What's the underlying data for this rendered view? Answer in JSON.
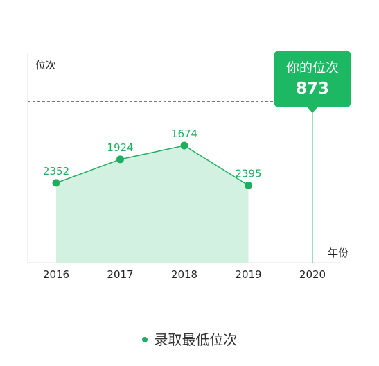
{
  "chart_data": {
    "type": "area",
    "xlabel": "年份",
    "ylabel": "位次",
    "categories": [
      "2016",
      "2017",
      "2018",
      "2019",
      "2020"
    ],
    "series": [
      {
        "name": "录取最低位次",
        "x": [
          "2016",
          "2017",
          "2018",
          "2019"
        ],
        "values": [
          2352,
          1924,
          1674,
          2395
        ]
      }
    ],
    "marker": {
      "x": "2020",
      "value": 873,
      "title": "你的位次",
      "label": "873"
    },
    "ylim": [
      0,
      3800
    ],
    "y_inverted": true,
    "legend": "bottom",
    "grid": false,
    "colors": {
      "series": "#1fae60",
      "area": "#d2f1e0",
      "marker_ring": "#c0392b",
      "callout": "#1db863",
      "reference_line": "#666666"
    }
  }
}
